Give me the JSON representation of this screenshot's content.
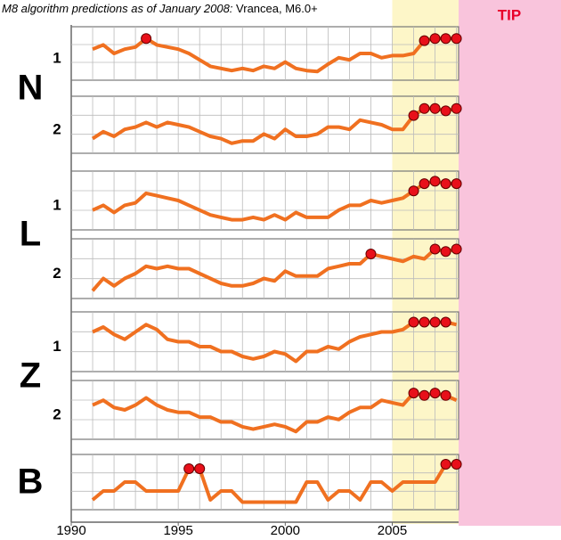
{
  "title": "M8 algorithm predictions as of January 2008:",
  "subtitle": "Vrancea, M6.0+",
  "tip_label": "TIP",
  "highlight_x": [
    2005,
    2008
  ],
  "chart_data": [
    {
      "type": "line",
      "group": "N",
      "label": "1",
      "color": "#f07020",
      "xlim": [
        1990,
        2008.1
      ],
      "ylim": [
        0,
        10
      ],
      "x": [
        1991,
        1991.5,
        1992,
        1992.5,
        1993,
        1993.5,
        1994,
        1994.5,
        1995,
        1995.5,
        1996,
        1996.5,
        1997,
        1997.5,
        1998,
        1998.5,
        1999,
        1999.5,
        2000,
        2000.5,
        2001,
        2001.5,
        2002,
        2002.5,
        2003,
        2003.5,
        2004,
        2004.5,
        2005,
        2005.5,
        2006,
        2006.5,
        2007,
        2007.5,
        2008
      ],
      "values": [
        6,
        7,
        5,
        6,
        6.5,
        8.5,
        7,
        6.5,
        6,
        5,
        3.5,
        2,
        1.5,
        1,
        1.5,
        1,
        2,
        1.5,
        3,
        1.5,
        1,
        0.8,
        2.5,
        4,
        3.5,
        5,
        5,
        4,
        4.5,
        4.5,
        5,
        8,
        8.5,
        8.5,
        8.5
      ],
      "alarm_x": [
        1993.5,
        2006.5,
        2007,
        2007.5,
        2008
      ]
    },
    {
      "type": "line",
      "label": "2",
      "color": "#f07020",
      "xlim": [
        1990,
        2008.1
      ],
      "ylim": [
        0,
        10
      ],
      "x": [
        1991,
        1991.5,
        1992,
        1992.5,
        1993,
        1993.5,
        1994,
        1994.5,
        1995,
        1995.5,
        1996,
        1996.5,
        1997,
        1997.5,
        1998,
        1998.5,
        1999,
        1999.5,
        2000,
        2000.5,
        2001,
        2001.5,
        2002,
        2002.5,
        2003,
        2003.5,
        2004,
        2004.5,
        2005,
        2005.5,
        2006,
        2006.5,
        2007,
        2007.5,
        2008
      ],
      "values": [
        2,
        3.5,
        2.5,
        4,
        4.5,
        5.5,
        4.5,
        5.5,
        5,
        4.5,
        3.5,
        2.5,
        2,
        1,
        1.5,
        1.5,
        3,
        2,
        4,
        2.5,
        2.5,
        3,
        4.5,
        4.5,
        4,
        6,
        5.5,
        5,
        4,
        4,
        7,
        8.5,
        8.5,
        8,
        8.5
      ],
      "alarm_x": [
        2006,
        2006.5,
        2007,
        2007.5,
        2008
      ]
    },
    {
      "type": "line",
      "group": "L",
      "label": "1",
      "color": "#f07020",
      "xlim": [
        1990,
        2008.1
      ],
      "ylim": [
        0,
        10
      ],
      "x": [
        1991,
        1991.5,
        1992,
        1992.5,
        1993,
        1993.5,
        1994,
        1994.5,
        1995,
        1995.5,
        1996,
        1996.5,
        1997,
        1997.5,
        1998,
        1998.5,
        1999,
        1999.5,
        2000,
        2000.5,
        2001,
        2001.5,
        2002,
        2002.5,
        2003,
        2003.5,
        2004,
        2004.5,
        2005,
        2005.5,
        2006,
        2006.5,
        2007,
        2007.5,
        2008
      ],
      "values": [
        3,
        4,
        2.5,
        4,
        4.5,
        6.5,
        6,
        5.5,
        5,
        4,
        3,
        2,
        1.5,
        1,
        1,
        1.5,
        1,
        2,
        1,
        2.5,
        1.5,
        1.5,
        1.5,
        3,
        4,
        4,
        5,
        4.5,
        5,
        5.5,
        7,
        8.5,
        9,
        8.5,
        8.5
      ],
      "alarm_x": [
        2006,
        2006.5,
        2007,
        2007.5,
        2008
      ]
    },
    {
      "type": "line",
      "label": "2",
      "color": "#f07020",
      "xlim": [
        1990,
        2008.1
      ],
      "ylim": [
        0,
        10
      ],
      "x": [
        1991,
        1991.5,
        1992,
        1992.5,
        1993,
        1993.5,
        1994,
        1994.5,
        1995,
        1995.5,
        1996,
        1996.5,
        1997,
        1997.5,
        1998,
        1998.5,
        1999,
        1999.5,
        2000,
        2000.5,
        2001,
        2001.5,
        2002,
        2002.5,
        2003,
        2003.5,
        2004,
        2004.5,
        2005,
        2005.5,
        2006,
        2006.5,
        2007,
        2007.5,
        2008
      ],
      "values": [
        0.5,
        3,
        1.5,
        3,
        4,
        5.5,
        5,
        5.5,
        5,
        5,
        4,
        3,
        2,
        1.5,
        1.5,
        2,
        3,
        2.5,
        4.5,
        3.5,
        3.5,
        3.5,
        5,
        5.5,
        6,
        6,
        8,
        7.5,
        7,
        6.5,
        7.5,
        7,
        9,
        8.5,
        9
      ],
      "alarm_x": [
        2004,
        2007,
        2007.5,
        2008
      ]
    },
    {
      "type": "line",
      "group": "Z",
      "label": "1",
      "color": "#f07020",
      "xlim": [
        1990,
        2008.1
      ],
      "ylim": [
        0,
        10
      ],
      "x": [
        1991,
        1991.5,
        1992,
        1992.5,
        1993,
        1993.5,
        1994,
        1994.5,
        1995,
        1995.5,
        1996,
        1996.5,
        1997,
        1997.5,
        1998,
        1998.5,
        1999,
        1999.5,
        2000,
        2000.5,
        2001,
        2001.5,
        2002,
        2002.5,
        2003,
        2003.5,
        2004,
        2004.5,
        2005,
        2005.5,
        2006,
        2006.5,
        2007,
        2007.5,
        2008
      ],
      "values": [
        7,
        8,
        6.5,
        5.5,
        7,
        8.5,
        7.5,
        5.5,
        5,
        5,
        4,
        4,
        3,
        3,
        2,
        1.5,
        2,
        3,
        2.5,
        1,
        3,
        3,
        4,
        3.5,
        5,
        6,
        6.5,
        7,
        7,
        7.5,
        9,
        9,
        9,
        9,
        8.5
      ],
      "alarm_x": [
        2006,
        2006.5,
        2007,
        2007.5
      ]
    },
    {
      "type": "line",
      "label": "2",
      "color": "#f07020",
      "xlim": [
        1990,
        2008.1
      ],
      "ylim": [
        0,
        10
      ],
      "x": [
        1991,
        1991.5,
        1992,
        1992.5,
        1993,
        1993.5,
        1994,
        1994.5,
        1995,
        1995.5,
        1996,
        1996.5,
        1997,
        1997.5,
        1998,
        1998.5,
        1999,
        1999.5,
        2000,
        2000.5,
        2001,
        2001.5,
        2002,
        2002.5,
        2003,
        2003.5,
        2004,
        2004.5,
        2005,
        2005.5,
        2006,
        2006.5,
        2007,
        2007.5,
        2008
      ],
      "values": [
        6,
        7,
        5.5,
        5,
        6,
        7.5,
        6,
        5,
        4.5,
        4.5,
        3.5,
        3.5,
        2.5,
        2.5,
        1.5,
        1,
        1.5,
        2,
        1.5,
        0.5,
        2.5,
        2.5,
        3.5,
        3,
        4.5,
        5.5,
        5.5,
        7,
        6.5,
        6,
        8.5,
        8,
        8.5,
        8,
        7
      ],
      "alarm_x": [
        2006,
        2006.5,
        2007,
        2007.5
      ]
    },
    {
      "type": "line",
      "group": "B",
      "color": "#f07020",
      "xlim": [
        1990,
        2008.1
      ],
      "ylim": [
        0,
        10
      ],
      "x": [
        1991,
        1991.5,
        1992,
        1992.5,
        1993,
        1993.5,
        1994,
        1994.5,
        1995,
        1995.5,
        1996,
        1996.5,
        1997,
        1997.5,
        1998,
        1998.5,
        1999,
        1999.5,
        2000,
        2000.5,
        2001,
        2001.5,
        2002,
        2002.5,
        2003,
        2003.5,
        2004,
        2004.5,
        2005,
        2005.5,
        2006,
        2006.5,
        2007,
        2007.5,
        2008
      ],
      "values": [
        1,
        3,
        3,
        5,
        5,
        3,
        3,
        3,
        3,
        8,
        8,
        1,
        3,
        3,
        0.5,
        0.5,
        0.5,
        0.5,
        0.5,
        0.5,
        5,
        5,
        1,
        3,
        3,
        1,
        5,
        5,
        3,
        5,
        5,
        5,
        5,
        9,
        9
      ],
      "alarm_x": [
        1995.5,
        1996,
        2007.5,
        2008
      ],
      "xticks": [
        1990,
        1995,
        2000,
        2005
      ]
    }
  ]
}
